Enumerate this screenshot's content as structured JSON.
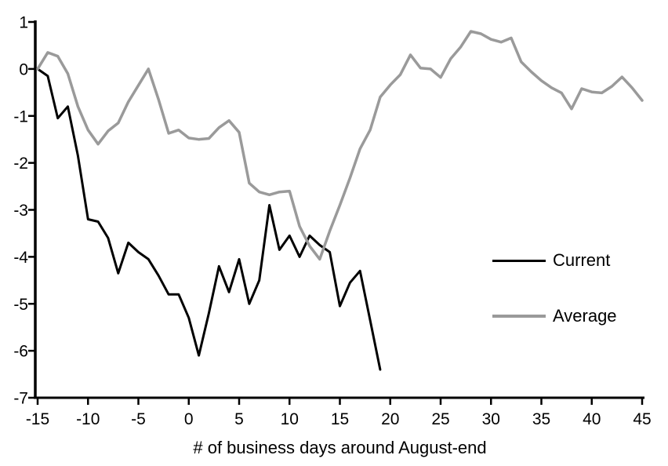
{
  "chart_data": {
    "type": "line",
    "title": "",
    "xlabel": "# of business days around August-end",
    "ylabel": "",
    "xlim": [
      -15,
      45
    ],
    "ylim": [
      -7,
      1
    ],
    "x_ticks": [
      -15,
      -10,
      -5,
      0,
      5,
      10,
      15,
      20,
      25,
      30,
      35,
      40,
      45
    ],
    "y_ticks": [
      1,
      0,
      -1,
      -2,
      -3,
      -4,
      -5,
      -6,
      -7
    ],
    "grid": false,
    "legend_position": "inside-right",
    "series": [
      {
        "name": "Current",
        "color": "#000000",
        "x": [
          -15,
          -14,
          -13,
          -12,
          -11,
          -10,
          -9,
          -8,
          -7,
          -6,
          -5,
          -4,
          -3,
          -2,
          -1,
          0,
          1,
          2,
          3,
          4,
          5,
          6,
          7,
          8,
          9,
          10,
          11,
          12,
          13,
          14,
          15,
          16,
          17,
          18,
          19
        ],
        "values": [
          0.0,
          -0.15,
          -1.05,
          -0.8,
          -1.85,
          -3.2,
          -3.25,
          -3.6,
          -4.35,
          -3.7,
          -3.9,
          -4.05,
          -4.4,
          -4.8,
          -4.8,
          -5.3,
          -6.1,
          -5.2,
          -4.2,
          -4.75,
          -4.05,
          -5.0,
          -4.5,
          -2.9,
          -3.85,
          -3.55,
          -4.0,
          -3.55,
          -3.75,
          -3.9,
          -5.05,
          -4.55,
          -4.3,
          -5.35,
          -6.4
        ]
      },
      {
        "name": "Average",
        "color": "#9a9a9a",
        "x": [
          -15,
          -14,
          -13,
          -12,
          -11,
          -10,
          -9,
          -8,
          -7,
          -6,
          -5,
          -4,
          -3,
          -2,
          -1,
          0,
          1,
          2,
          3,
          4,
          5,
          6,
          7,
          8,
          9,
          10,
          11,
          12,
          13,
          14,
          15,
          16,
          17,
          18,
          19,
          20,
          21,
          22,
          23,
          24,
          25,
          26,
          27,
          28,
          29,
          30,
          31,
          32,
          33,
          34,
          35,
          36,
          37,
          38,
          39,
          40,
          41,
          42,
          43,
          44,
          45
        ],
        "values": [
          0.0,
          0.35,
          0.27,
          -0.1,
          -0.8,
          -1.3,
          -1.6,
          -1.32,
          -1.15,
          -0.7,
          -0.35,
          0.0,
          -0.65,
          -1.37,
          -1.3,
          -1.47,
          -1.5,
          -1.48,
          -1.25,
          -1.1,
          -1.35,
          -2.43,
          -2.62,
          -2.68,
          -2.62,
          -2.6,
          -3.35,
          -3.77,
          -4.05,
          -3.45,
          -2.9,
          -2.32,
          -1.7,
          -1.3,
          -0.6,
          -0.34,
          -0.12,
          0.3,
          0.02,
          0.0,
          -0.18,
          0.22,
          0.47,
          0.8,
          0.75,
          0.63,
          0.57,
          0.66,
          0.15,
          -0.06,
          -0.25,
          -0.4,
          -0.51,
          -0.85,
          -0.42,
          -0.49,
          -0.51,
          -0.37,
          -0.17,
          -0.4,
          -0.67
        ]
      }
    ]
  },
  "legend": {
    "items": [
      {
        "label": "Current",
        "color": "#000000"
      },
      {
        "label": "Average",
        "color": "#9a9a9a"
      }
    ]
  },
  "colors": {
    "current": "#000000",
    "average": "#9a9a9a",
    "axis": "#000000",
    "background": "#ffffff"
  }
}
